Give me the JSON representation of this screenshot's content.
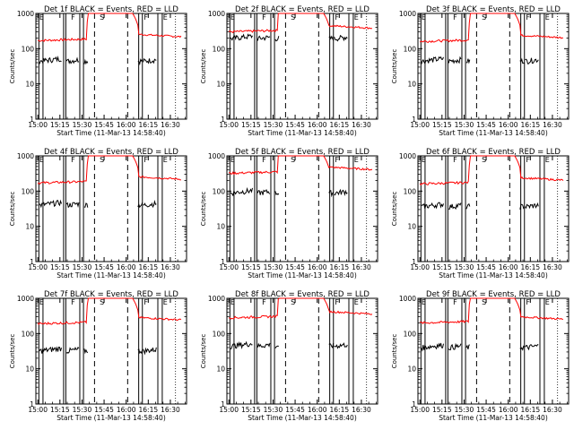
{
  "chart_data": {
    "type": "line",
    "yscale": "log",
    "ylim": [
      1,
      1000
    ],
    "y_tick_labels": [
      "1",
      "10",
      "100",
      "1000"
    ],
    "x_tick_labels": [
      "15:00",
      "15:15",
      "15:30",
      "15:45",
      "16:00",
      "16:15",
      "16:30"
    ],
    "ylabel": "Counts/sec",
    "xlabel": "Start Time (11-Mar-13 14:58:40)",
    "colors": {
      "events": "#000000",
      "lld": "#ff0000"
    },
    "marker_labels": {
      "E": "E",
      "F": "F",
      "S": "S"
    },
    "panels": [
      {
        "title": "Det 1f BLACK = Events, RED = LLD",
        "lld_level": 170,
        "events_level": 55
      },
      {
        "title": "Det 2f BLACK = Events, RED = LLD",
        "lld_level": 300,
        "events_level": 240
      },
      {
        "title": "Det 3f BLACK = Events, RED = LLD",
        "lld_level": 160,
        "events_level": 55
      },
      {
        "title": "Det 4f BLACK = Events, RED = LLD",
        "lld_level": 170,
        "events_level": 50
      },
      {
        "title": "Det 5f BLACK = Events, RED = LLD",
        "lld_level": 320,
        "events_level": 110
      },
      {
        "title": "Det 6f BLACK = Events, RED = LLD",
        "lld_level": 160,
        "events_level": 45
      },
      {
        "title": "Det 7f BLACK = Events, RED = LLD",
        "lld_level": 190,
        "events_level": 40
      },
      {
        "title": "Det 8f BLACK = Events, RED = LLD",
        "lld_level": 280,
        "events_level": 55
      },
      {
        "title": "Det 9f BLACK = Events, RED = LLD",
        "lld_level": 200,
        "events_level": 50
      }
    ]
  }
}
